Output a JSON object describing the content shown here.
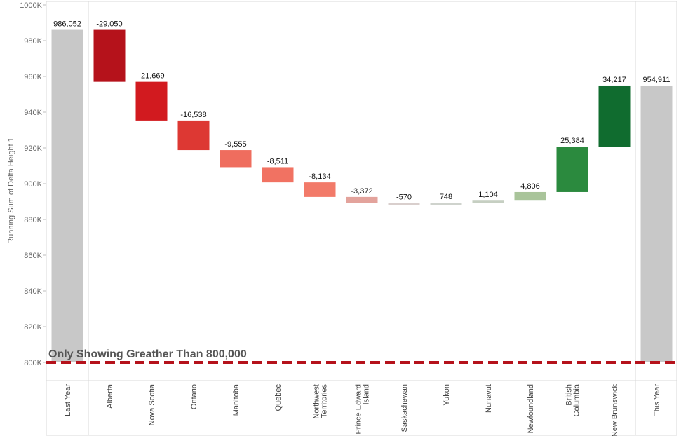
{
  "chart_data": {
    "type": "waterfall",
    "ylabel": "Running Sum of Delta Height 1",
    "ylim": [
      800000,
      1000000
    ],
    "yticks": [
      800000,
      820000,
      840000,
      860000,
      880000,
      900000,
      920000,
      940000,
      960000,
      980000,
      1000000
    ],
    "ytick_labels": [
      "800K",
      "820K",
      "840K",
      "860K",
      "880K",
      "900K",
      "920K",
      "940K",
      "960K",
      "980K",
      "1000K"
    ],
    "threshold": 800000,
    "threshold_label": "Only Showing Greather Than 800,000",
    "categories": [
      {
        "name": "Last Year",
        "lines": [
          "Last Year"
        ],
        "kind": "total",
        "value": 986052,
        "label": "986,052",
        "color": "#c8c8c8"
      },
      {
        "name": "Alberta",
        "lines": [
          "Alberta"
        ],
        "kind": "delta",
        "value": -29050,
        "label": "-29,050",
        "color": "#b5121b"
      },
      {
        "name": "Nova Scotia",
        "lines": [
          "Nova Scotia"
        ],
        "kind": "delta",
        "value": -21669,
        "label": "-21,669",
        "color": "#d21a1f"
      },
      {
        "name": "Ontario",
        "lines": [
          "Ontario"
        ],
        "kind": "delta",
        "value": -16538,
        "label": "-16,538",
        "color": "#dd3833"
      },
      {
        "name": "Manitoba",
        "lines": [
          "Manitoba"
        ],
        "kind": "delta",
        "value": -9555,
        "label": "-9,555",
        "color": "#ef6d5e"
      },
      {
        "name": "Quebec",
        "lines": [
          "Quebec"
        ],
        "kind": "delta",
        "value": -8511,
        "label": "-8,511",
        "color": "#f17262"
      },
      {
        "name": "Northwest Territories",
        "lines": [
          "Northwest",
          "Territories"
        ],
        "kind": "delta",
        "value": -8134,
        "label": "-8,134",
        "color": "#f27a69"
      },
      {
        "name": "Prince Edward Island",
        "lines": [
          "Prince Edward",
          "Island"
        ],
        "kind": "delta",
        "value": -3372,
        "label": "-3,372",
        "color": "#e3a39c"
      },
      {
        "name": "Saskachewan",
        "lines": [
          "Saskachewan"
        ],
        "kind": "delta",
        "value": -570,
        "label": "-570",
        "color": "#d9cfcd"
      },
      {
        "name": "Yukon",
        "lines": [
          "Yukon"
        ],
        "kind": "delta",
        "value": 748,
        "label": "748",
        "color": "#cfd3cd"
      },
      {
        "name": "Nunavut",
        "lines": [
          "Nunavut"
        ],
        "kind": "delta",
        "value": 1104,
        "label": "1,104",
        "color": "#c6cfc2"
      },
      {
        "name": "Newfoundland",
        "lines": [
          "Newfoundland"
        ],
        "kind": "delta",
        "value": 4806,
        "label": "4,806",
        "color": "#a9c49a"
      },
      {
        "name": "British Columbia",
        "lines": [
          "British",
          "Columbia"
        ],
        "kind": "delta",
        "value": 25384,
        "label": "25,384",
        "color": "#2b8a3e"
      },
      {
        "name": "New Brunswick",
        "lines": [
          "New Brunswick"
        ],
        "kind": "delta",
        "value": 34217,
        "label": "34,217",
        "color": "#106c2f"
      },
      {
        "name": "This Year",
        "lines": [
          "This Year"
        ],
        "kind": "total",
        "value": 954911,
        "label": "954,911",
        "color": "#c8c8c8"
      }
    ]
  }
}
